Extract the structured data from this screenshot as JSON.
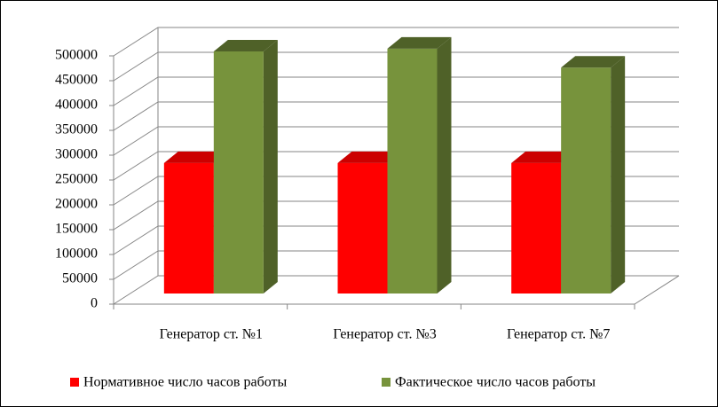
{
  "chart_data": {
    "type": "bar3d",
    "categories": [
      "Генератор ст. №1",
      "Генератор ст. №3",
      "Генератор ст. №7"
    ],
    "series": [
      {
        "name": "Нормативное число часов работы",
        "color": "#ff0000",
        "values": [
          262800,
          262800,
          262800
        ]
      },
      {
        "name": "Фактическое число часов работы",
        "color": "#77933c",
        "values": [
          487500,
          493000,
          455000
        ]
      }
    ],
    "ylim": [
      0,
      500000
    ],
    "yticks": [
      0,
      50000,
      100000,
      150000,
      200000,
      250000,
      300000,
      350000,
      400000,
      450000,
      500000
    ],
    "grid": true,
    "legend": "bottom"
  }
}
